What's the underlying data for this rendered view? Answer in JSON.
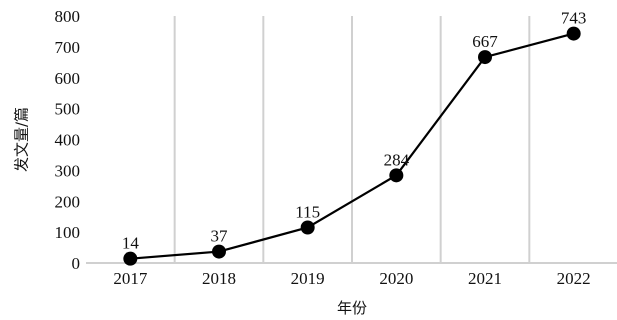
{
  "chart_data": {
    "type": "line",
    "title": "",
    "xlabel": "年份",
    "ylabel": "发文量/篇",
    "categories": [
      "2017",
      "2018",
      "2019",
      "2020",
      "2021",
      "2022"
    ],
    "series": [
      {
        "values": [
          14,
          37,
          115,
          284,
          667,
          743
        ],
        "color": "#000000"
      }
    ],
    "ylim": [
      0,
      800
    ],
    "yticks": [
      "0",
      "100",
      "200",
      "300",
      "400",
      "500",
      "600",
      "700",
      "800"
    ],
    "grid": "vertical",
    "legend": "none"
  }
}
